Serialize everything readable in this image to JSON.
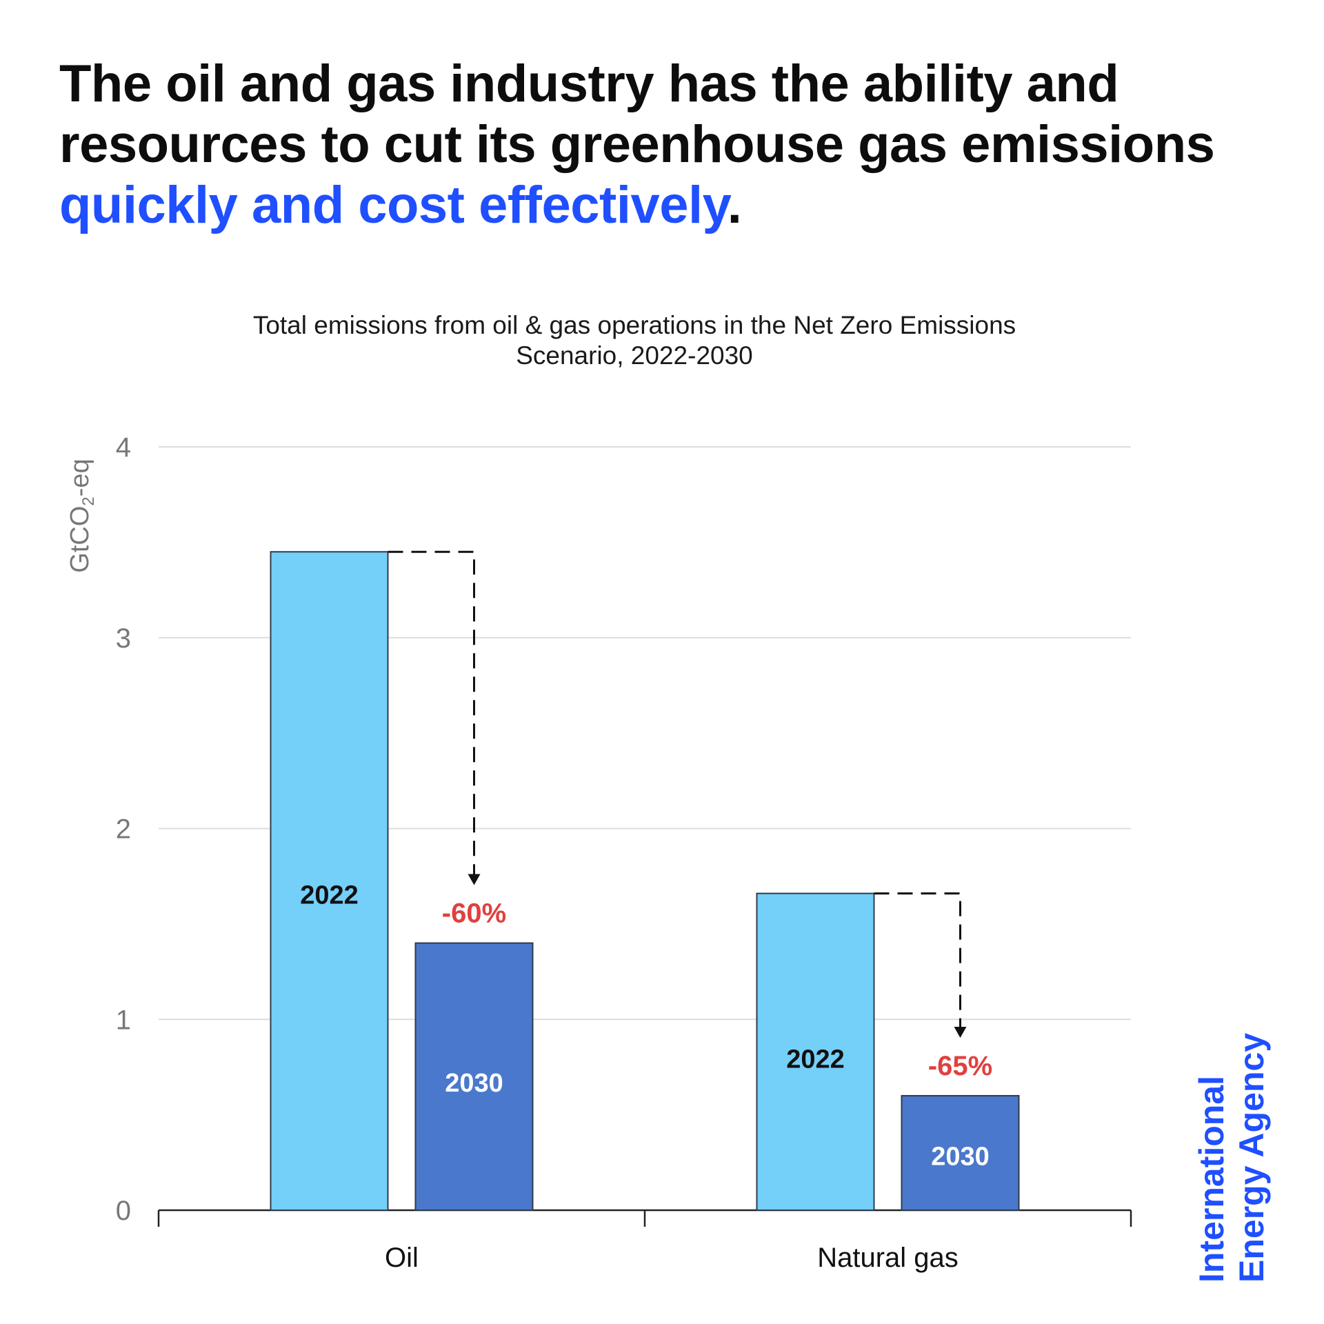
{
  "headline": {
    "line1": "The oil and gas industry has the ability and",
    "line2": "resources to cut its greenhouse gas emissions",
    "accent": "quickly and cost effectively",
    "end": "."
  },
  "colors": {
    "bar_2022": "#74cff9",
    "bar_2030": "#4a78cc",
    "accent": "#1f4fff",
    "pct_label": "#e0403e"
  },
  "chart_data": {
    "type": "bar",
    "title": "Total emissions from oil & gas operations in the Net Zero Emissions Scenario, 2022-2030",
    "title_lines": [
      "Total emissions from oil & gas operations in the Net Zero Emissions",
      "Scenario, 2022-2030"
    ],
    "ylabel": "GtCO",
    "ylabel_sub": "2",
    "ylabel_suffix": "-eq",
    "ylim": [
      0,
      4
    ],
    "yticks": [
      0,
      1,
      2,
      3,
      4
    ],
    "categories": [
      "Oil",
      "Natural gas"
    ],
    "series": [
      {
        "name": "2022",
        "values": [
          3.45,
          1.66
        ]
      },
      {
        "name": "2030",
        "values": [
          1.4,
          0.6
        ]
      }
    ],
    "annotations": [
      "-60%",
      "-65%"
    ],
    "grid": true
  },
  "logo": {
    "line1": "International",
    "line2": "Energy Agency"
  }
}
